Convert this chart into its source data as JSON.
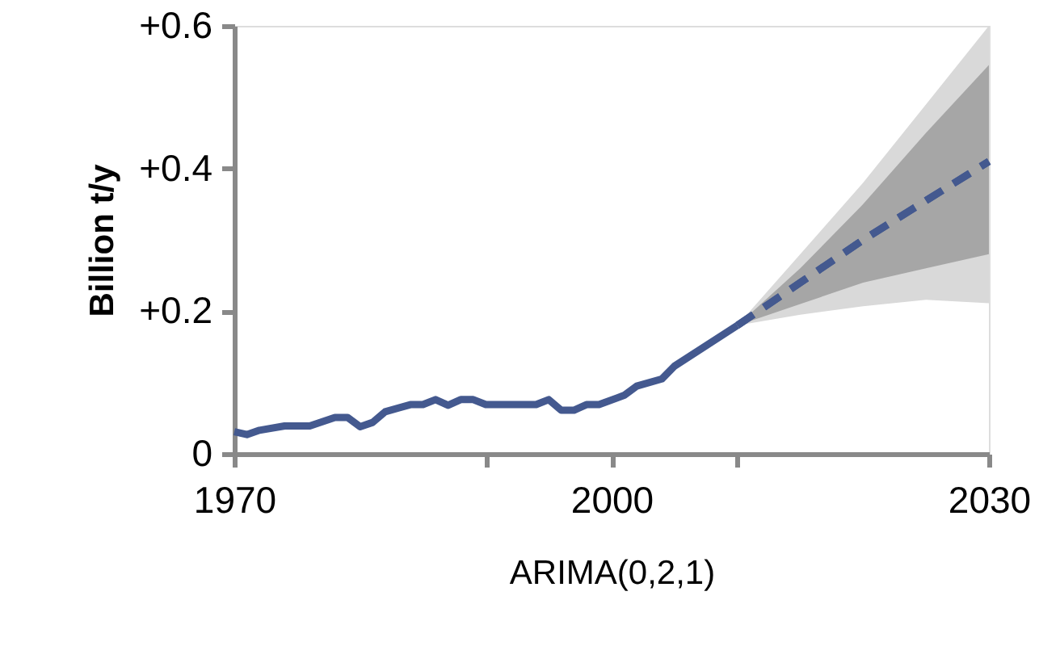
{
  "chart_data": {
    "type": "line",
    "xlabel": "ARIMA(0,2,1)",
    "ylabel": "Billion t/y",
    "xlim": [
      1970,
      2030
    ],
    "ylim": [
      0,
      0.6
    ],
    "xticks": [
      {
        "value": 1970,
        "label": "1970"
      },
      {
        "value": 1990,
        "label": null
      },
      {
        "value": 2000,
        "label": "2000"
      },
      {
        "value": 2010,
        "label": null
      },
      {
        "value": 2030,
        "label": "2030"
      }
    ],
    "yticks": [
      {
        "value": 0,
        "label": "0"
      },
      {
        "value": 0.2,
        "label": "+0.2"
      },
      {
        "value": 0.4,
        "label": "+0.4"
      },
      {
        "value": 0.6,
        "label": "+0.6"
      }
    ],
    "grid": false,
    "marker": "none",
    "series": [
      {
        "color": "#44598f",
        "line_style": "solid",
        "x": [
          1970,
          1971,
          1972,
          1974,
          1976,
          1978,
          1979,
          1980,
          1981,
          1982,
          1984,
          1985,
          1986,
          1987,
          1988,
          1989,
          1990,
          1994,
          1995,
          1996,
          1997,
          1998,
          1999,
          2001,
          2002,
          2004,
          2005,
          2010
        ],
        "values": [
          0.031,
          0.027,
          0.033,
          0.039,
          0.039,
          0.051,
          0.051,
          0.038,
          0.044,
          0.059,
          0.069,
          0.069,
          0.076,
          0.068,
          0.076,
          0.076,
          0.069,
          0.069,
          0.076,
          0.061,
          0.061,
          0.069,
          0.069,
          0.082,
          0.095,
          0.105,
          0.123,
          0.18
        ]
      },
      {
        "color": "#44598f",
        "line_style": "dashed",
        "x": [
          2010,
          2015,
          2020,
          2025,
          2030
        ],
        "values": [
          0.18,
          0.24,
          0.3,
          0.355,
          0.41
        ],
        "lower": [
          0.18,
          0.195,
          0.207,
          0.216,
          0.211
        ],
        "upper": [
          0.18,
          0.28,
          0.38,
          0.49,
          0.6
        ]
      },
      {
        "color": "#44598f",
        "line_style": "dashed",
        "x": [
          2010,
          2015,
          2020,
          2025,
          2030
        ],
        "values": [
          0.18,
          0.24,
          0.3,
          0.355,
          0.41
        ],
        "lower": [
          0.18,
          0.21,
          0.24,
          0.26,
          0.28
        ],
        "upper": [
          0.18,
          0.26,
          0.35,
          0.45,
          0.545
        ]
      }
    ]
  }
}
